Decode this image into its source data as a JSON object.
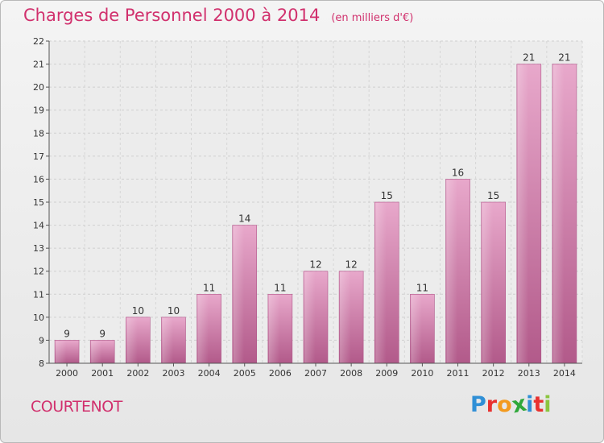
{
  "header": {
    "title": "Charges de Personnel 2000 à 2014",
    "subtitle": "(en milliers d'€)"
  },
  "location": "COURTENOT",
  "logo": {
    "letters": [
      "P",
      "r",
      "o",
      "x",
      "i",
      "t",
      "i"
    ],
    "colors": [
      "#2f8fd6",
      "#e8312f",
      "#f39a1e",
      "#2fa83a",
      "#2f8fd6",
      "#e8312f",
      "#8bc53f"
    ]
  },
  "chart_data": {
    "type": "bar",
    "categories": [
      "2000",
      "2001",
      "2002",
      "2003",
      "2004",
      "2005",
      "2006",
      "2007",
      "2008",
      "2009",
      "2010",
      "2011",
      "2012",
      "2013",
      "2014"
    ],
    "values": [
      9,
      9,
      10,
      10,
      11,
      14,
      11,
      12,
      12,
      15,
      11,
      16,
      15,
      21,
      21
    ],
    "ylim": [
      8,
      22
    ],
    "yticks": [
      8,
      9,
      10,
      11,
      12,
      13,
      14,
      15,
      16,
      17,
      18,
      19,
      20,
      21,
      22
    ],
    "grid": true,
    "bar_color": "#c55e92"
  }
}
